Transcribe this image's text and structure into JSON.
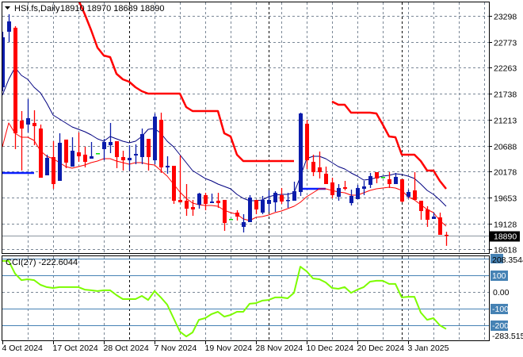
{
  "header": {
    "symbol_timeframe": "HSI.fs,Daily",
    "ohlc_readout": "18910 18970 18689 18890"
  },
  "indicator_panel": {
    "label": "CCI(27) -222.6044",
    "max_label": "208.3544",
    "min_label": "-283.515",
    "zero_label": "0.00"
  },
  "colors": {
    "bull": "#0b1cab",
    "bear": "#ff0000",
    "doji": "#00e000",
    "ma_fast": "#ff0000",
    "ma_slow": "#000080",
    "channel_upper": "#ff0000",
    "channel_lower": "#0a1fff",
    "cci": "#7cfc00",
    "level_line": "#4682b4",
    "grid": "#7a8796",
    "separator": "#000000",
    "price_line": "#8c96a0"
  },
  "chart_data": [
    {
      "type": "candlestick",
      "title": "HSI.fs,Daily",
      "ylim": [
        18618,
        23298
      ],
      "grid": true,
      "y_ticks": [
        23298,
        22773,
        22263,
        21738,
        21213,
        20688,
        20178,
        19653,
        19128,
        18618
      ],
      "current_price": 18890,
      "x_ticks": [
        {
          "label": "4 Oct 2024",
          "index": 0
        },
        {
          "label": "17 Oct 2024",
          "index": 8
        },
        {
          "label": "28 Oct 2024",
          "index": 16
        },
        {
          "label": "7 Nov 2024",
          "index": 24
        },
        {
          "label": "19 Nov 2024",
          "index": 32
        },
        {
          "label": "28 Nov 2024",
          "index": 40
        },
        {
          "label": "10 Dec 2024",
          "index": 48
        },
        {
          "label": "20 Dec 2024",
          "index": 56
        },
        {
          "label": "3 Jan 2025",
          "index": 64
        }
      ],
      "period_separators": [
        20,
        42,
        63
      ],
      "ohlc": [
        [
          21867,
          22980,
          21788,
          22869
        ],
        [
          22980,
          23330,
          22773,
          23187
        ],
        [
          23060,
          23091,
          20627,
          20945
        ],
        [
          21199,
          21390,
          20198,
          21040
        ],
        [
          21120,
          21629,
          20961,
          21247
        ],
        [
          21152,
          21406,
          20706,
          21088
        ],
        [
          21040,
          21120,
          20054,
          20054
        ],
        [
          20102,
          20516,
          20102,
          20452
        ],
        [
          20468,
          20786,
          19832,
          19927
        ],
        [
          19991,
          20945,
          19991,
          20754
        ],
        [
          20818,
          20818,
          20245,
          20357
        ],
        [
          20277,
          20865,
          20277,
          20595
        ],
        [
          20563,
          20961,
          20372,
          20484
        ],
        [
          20516,
          20675,
          20261,
          20372
        ],
        [
          20436,
          20770,
          20436,
          20484
        ],
        [
          20547,
          20547,
          20547,
          20547
        ],
        [
          20627,
          20833,
          20404,
          20770
        ],
        [
          20706,
          21152,
          20547,
          20770
        ],
        [
          20786,
          20786,
          20245,
          20468
        ],
        [
          20468,
          20595,
          20198,
          20404
        ],
        [
          20404,
          20706,
          20198,
          20452
        ],
        [
          20500,
          20722,
          20325,
          20531
        ],
        [
          20468,
          21040,
          20325,
          20929
        ],
        [
          20833,
          20833,
          20198,
          20468
        ],
        [
          20404,
          21342,
          20325,
          21279
        ],
        [
          21215,
          21358,
          20150,
          20261
        ],
        [
          20261,
          20484,
          20134,
          20293
        ],
        [
          20293,
          20293,
          19530,
          19593
        ],
        [
          19609,
          20500,
          19561,
          19561
        ],
        [
          19593,
          19927,
          19291,
          19434
        ],
        [
          19466,
          19609,
          19291,
          19418
        ],
        [
          19514,
          19752,
          19434,
          19736
        ],
        [
          19705,
          19752,
          19402,
          19530
        ],
        [
          19546,
          19736,
          19546,
          19577
        ],
        [
          19593,
          19752,
          19450,
          19546
        ],
        [
          19609,
          19609,
          18989,
          19148
        ],
        [
          19228,
          19228,
          19228,
          19228
        ],
        [
          19355,
          19402,
          19196,
          19275
        ],
        [
          19069,
          19323,
          18957,
          19164
        ],
        [
          19164,
          19705,
          19164,
          19657
        ],
        [
          19609,
          19609,
          19323,
          19418
        ],
        [
          19355,
          19689,
          19323,
          19609
        ],
        [
          19530,
          19800,
          19371,
          19609
        ],
        [
          19561,
          19784,
          19371,
          19752
        ],
        [
          19705,
          19848,
          19530,
          19577
        ],
        [
          19593,
          19752,
          19450,
          19609
        ],
        [
          19593,
          19975,
          19593,
          19784
        ],
        [
          19768,
          21358,
          19689,
          21342
        ],
        [
          21136,
          21215,
          20229,
          20404
        ],
        [
          20372,
          20516,
          20086,
          20166
        ],
        [
          20261,
          20579,
          20039,
          20166
        ],
        [
          20134,
          20277,
          19927,
          19927
        ],
        [
          19959,
          20054,
          19641,
          19705
        ],
        [
          19673,
          19927,
          19593,
          19848
        ],
        [
          19864,
          19991,
          19800,
          19832
        ],
        [
          19546,
          19816,
          19498,
          19689
        ],
        [
          19625,
          19911,
          19625,
          19848
        ],
        [
          19832,
          19991,
          19705,
          19880
        ],
        [
          19911,
          20150,
          19848,
          20086
        ],
        [
          20166,
          20166,
          19943,
          20039
        ],
        [
          20070,
          20070,
          20070,
          20070
        ],
        [
          20023,
          20166,
          19848,
          19927
        ],
        [
          19927,
          20150,
          19927,
          20070
        ],
        [
          20023,
          20023,
          19561,
          19577
        ],
        [
          19673,
          19816,
          19641,
          19768
        ],
        [
          19800,
          20166,
          19609,
          19609
        ],
        [
          19593,
          19593,
          19212,
          19387
        ],
        [
          19418,
          19482,
          19069,
          19212
        ],
        [
          19228,
          19355,
          19228,
          19275
        ],
        [
          19259,
          19355,
          18910,
          18910
        ],
        [
          18910,
          18970,
          18689,
          18890
        ]
      ],
      "ma_fast": [
        20675,
        21152,
        20945,
        20865,
        20865,
        20802,
        20595,
        20484,
        20436,
        20357,
        20277,
        20245,
        20277,
        20309,
        20357,
        20389,
        20436,
        20436,
        20389,
        20357,
        20325,
        20357,
        20357,
        20325,
        20309,
        20198,
        20086,
        19927,
        19768,
        19641,
        19546,
        19514,
        19498,
        19498,
        19482,
        19402,
        19355,
        19323,
        19228,
        19196,
        19259,
        19275,
        19307,
        19355,
        19387,
        19434,
        19482,
        19561,
        19673,
        19752,
        19832,
        19832,
        19800,
        19768,
        19752,
        19705,
        19705,
        19752,
        19800,
        19832,
        19848,
        19864,
        19848,
        19800,
        19673,
        19609,
        19514,
        19418,
        19355,
        19196,
        19084
      ],
      "ma_slow": [
        21708,
        22026,
        22264,
        22106,
        22026,
        21867,
        21756,
        21549,
        21311,
        21231,
        21152,
        21072,
        21024,
        20977,
        20913,
        20833,
        20786,
        20881,
        20833,
        20786,
        20754,
        20786,
        20881,
        21024,
        21040,
        20945,
        20786,
        20675,
        20516,
        20357,
        20198,
        20118,
        20039,
        19991,
        19927,
        19880,
        19832,
        19721,
        19641,
        19593,
        19593,
        19609,
        19673,
        19705,
        19721,
        19721,
        19752,
        20070,
        20436,
        20484,
        20484,
        20436,
        20357,
        20277,
        20229,
        20150,
        20086,
        20007,
        20023,
        20054,
        20086,
        20102,
        20134,
        20118,
        20086,
        20039,
        19927,
        19800,
        19721,
        19609,
        19482
      ],
      "channel_upper": [
        null,
        null,
        null,
        null,
        null,
        null,
        null,
        null,
        null,
        null,
        null,
        null,
        23616,
        23330,
        23012,
        22662,
        22503,
        22471,
        22137,
        22026,
        21978,
        21867,
        21788,
        21740,
        21740,
        21740,
        21740,
        21740,
        21740,
        21470,
        21390,
        21390,
        21390,
        21390,
        21390,
        20945,
        20881,
        20516,
        20389,
        20389,
        20389,
        20389,
        20389,
        20389,
        20389,
        20389,
        20389,
        null,
        null,
        null,
        null,
        null,
        21581,
        21517,
        21517,
        21358,
        21358,
        21358,
        21358,
        21342,
        21120,
        20881,
        20865,
        20516,
        20516,
        20516,
        20389,
        20198,
        20198,
        19991,
        19832
      ],
      "channel_lower": [
        20150,
        20150,
        20150,
        20150,
        20150,
        20150,
        null,
        null,
        null,
        null,
        null,
        null,
        null,
        null,
        null,
        null,
        null,
        null,
        null,
        null,
        null,
        null,
        null,
        null,
        null,
        null,
        null,
        null,
        null,
        null,
        null,
        null,
        null,
        null,
        null,
        null,
        null,
        null,
        null,
        null,
        null,
        null,
        null,
        null,
        null,
        null,
        null,
        19832,
        19832,
        19832,
        19832,
        19832,
        null,
        null,
        null,
        null,
        null,
        null,
        null,
        null,
        null,
        null,
        null,
        null,
        null,
        null,
        null,
        null,
        null,
        null,
        null
      ]
    },
    {
      "type": "line",
      "title": "CCI(27)",
      "ylim": [
        -283.515,
        208.3544
      ],
      "levels": [
        200,
        100,
        -100,
        -200
      ],
      "level_labels": [
        "100",
        "-100",
        "-200"
      ],
      "values": [
        186,
        186,
        110,
        71,
        76,
        71,
        43,
        29,
        24,
        29,
        29,
        29,
        29,
        14,
        10,
        5,
        10,
        10,
        -19,
        -43,
        -43,
        -43,
        -24,
        -48,
        5,
        -33,
        -76,
        -157,
        -238,
        -267,
        -243,
        -167,
        -157,
        -133,
        -119,
        -148,
        -138,
        -119,
        -119,
        -71,
        -67,
        -52,
        -48,
        -33,
        -33,
        -38,
        -5,
        152,
        124,
        81,
        76,
        57,
        24,
        19,
        29,
        -5,
        14,
        29,
        62,
        67,
        67,
        48,
        48,
        -33,
        -29,
        -29,
        -124,
        -167,
        -157,
        -200,
        -222.6044
      ]
    }
  ]
}
